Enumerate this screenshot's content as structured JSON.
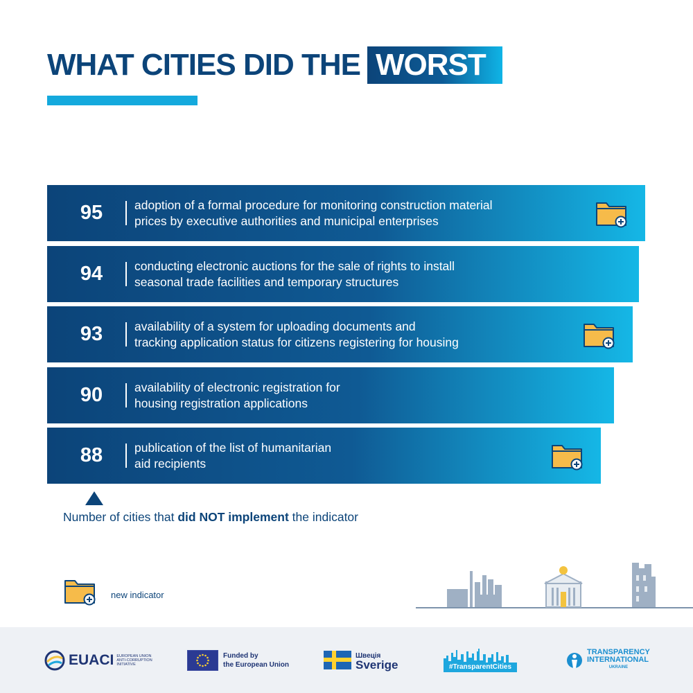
{
  "title": {
    "main": "WHAT CITIES DID THE",
    "highlight": "WORST"
  },
  "chart_data": {
    "type": "bar",
    "orientation": "horizontal",
    "title": "WHAT CITIES DID THE WORST",
    "categories": [
      "adoption of a formal procedure for monitoring construction material prices by executive authorities and municipal enterprises",
      "conducting electronic auctions for the sale of rights to install seasonal trade facilities and temporary structures",
      "availability of a system for uploading documents and tracking application status for citizens registering for housing",
      "availability of electronic registration for housing registration applications",
      "publication of the list of humanitarian aid recipients"
    ],
    "values": [
      95,
      94,
      93,
      90,
      88
    ],
    "new_indicator": [
      true,
      false,
      true,
      false,
      true
    ],
    "bars": [
      {
        "value": "95",
        "line1": "adoption of a formal procedure for monitoring construction material",
        "line2": "prices by executive authorities and municipal enterprises"
      },
      {
        "value": "94",
        "line1": "conducting electronic auctions for the sale of rights to install",
        "line2": "seasonal trade facilities and temporary structures"
      },
      {
        "value": "93",
        "line1": "availability of a system for uploading documents and",
        "line2": "tracking application status for citizens registering for housing"
      },
      {
        "value": "90",
        "line1": "availability of electronic registration for",
        "line2": "housing registration applications"
      },
      {
        "value": "88",
        "line1": "publication of the list of humanitarian",
        "line2": "aid recipients"
      }
    ]
  },
  "note": {
    "before": "Number of cities that ",
    "bold": "did NOT implement",
    "after": " the indicator"
  },
  "legend": {
    "label": "new indicator",
    "icon": "folder-plus-icon"
  },
  "footer": {
    "euaci": {
      "name": "EUACI",
      "sub1": "EUROPEAN UNION",
      "sub2": "ANTI-CORRUPTION",
      "sub3": "INITIATIVE"
    },
    "eu": {
      "line1": "Funded by",
      "line2": "the European Union"
    },
    "sweden": {
      "small": "Швеція",
      "big": "Sverige"
    },
    "tc": {
      "label": "#TransparentCities"
    },
    "ti": {
      "line1": "TRANSPARENCY",
      "line2": "INTERNATIONAL",
      "line3": "UKRAINE"
    }
  },
  "colors": {
    "navy": "#0c4479",
    "cyan": "#14a9dd",
    "folder": "#f6bb4a"
  }
}
